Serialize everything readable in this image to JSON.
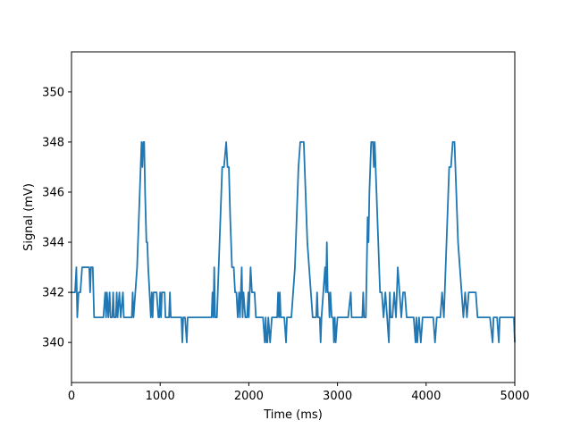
{
  "chart_data": {
    "type": "line",
    "title": "",
    "xlabel": "Time (ms)",
    "ylabel": "Signal (mV)",
    "xlim": [
      0,
      5000
    ],
    "ylim": [
      338.4,
      351.6
    ],
    "xticks": [
      0,
      1000,
      2000,
      3000,
      4000,
      5000
    ],
    "xtick_labels": [
      "0",
      "1000",
      "2000",
      "3000",
      "4000",
      "5000"
    ],
    "yticks": [
      340,
      342,
      344,
      346,
      348,
      350
    ],
    "ytick_labels": [
      "340",
      "342",
      "344",
      "346",
      "348",
      "350"
    ],
    "grid": false,
    "legend": "none",
    "color": "#1f77b4",
    "series": [
      {
        "points": [
          [
            0,
            342
          ],
          [
            40,
            342
          ],
          [
            55,
            343
          ],
          [
            65,
            341
          ],
          [
            80,
            342
          ],
          [
            100,
            342
          ],
          [
            120,
            343
          ],
          [
            200,
            343
          ],
          [
            210,
            342
          ],
          [
            220,
            343
          ],
          [
            240,
            343
          ],
          [
            255,
            341
          ],
          [
            280,
            341
          ],
          [
            300,
            341
          ],
          [
            330,
            341
          ],
          [
            360,
            341
          ],
          [
            380,
            342
          ],
          [
            390,
            341
          ],
          [
            400,
            342
          ],
          [
            415,
            341
          ],
          [
            430,
            342
          ],
          [
            440,
            341
          ],
          [
            460,
            341
          ],
          [
            470,
            342
          ],
          [
            480,
            341
          ],
          [
            500,
            341
          ],
          [
            510,
            342
          ],
          [
            520,
            341
          ],
          [
            540,
            342
          ],
          [
            555,
            341
          ],
          [
            580,
            342
          ],
          [
            590,
            341
          ],
          [
            620,
            341
          ],
          [
            650,
            341
          ],
          [
            680,
            341
          ],
          [
            690,
            342
          ],
          [
            700,
            341
          ],
          [
            720,
            342
          ],
          [
            740,
            343
          ],
          [
            760,
            345
          ],
          [
            780,
            347
          ],
          [
            790,
            348
          ],
          [
            800,
            347
          ],
          [
            810,
            348
          ],
          [
            820,
            348
          ],
          [
            830,
            346
          ],
          [
            845,
            344
          ],
          [
            855,
            344
          ],
          [
            865,
            343
          ],
          [
            880,
            342
          ],
          [
            895,
            341
          ],
          [
            905,
            342
          ],
          [
            915,
            341
          ],
          [
            925,
            342
          ],
          [
            940,
            342
          ],
          [
            960,
            342
          ],
          [
            980,
            341
          ],
          [
            990,
            341
          ],
          [
            1000,
            342
          ],
          [
            1010,
            341
          ],
          [
            1020,
            342
          ],
          [
            1050,
            342
          ],
          [
            1060,
            341
          ],
          [
            1080,
            341
          ],
          [
            1100,
            341
          ],
          [
            1110,
            342
          ],
          [
            1120,
            341
          ],
          [
            1140,
            341
          ],
          [
            1180,
            341
          ],
          [
            1200,
            341
          ],
          [
            1220,
            341
          ],
          [
            1240,
            341
          ],
          [
            1250,
            340
          ],
          [
            1260,
            341
          ],
          [
            1280,
            341
          ],
          [
            1300,
            340
          ],
          [
            1310,
            341
          ],
          [
            1330,
            341
          ],
          [
            1360,
            341
          ],
          [
            1400,
            341
          ],
          [
            1440,
            341
          ],
          [
            1480,
            341
          ],
          [
            1520,
            341
          ],
          [
            1560,
            341
          ],
          [
            1580,
            341
          ],
          [
            1590,
            342
          ],
          [
            1600,
            341
          ],
          [
            1610,
            343
          ],
          [
            1620,
            341
          ],
          [
            1640,
            341
          ],
          [
            1660,
            343
          ],
          [
            1680,
            345
          ],
          [
            1700,
            347
          ],
          [
            1720,
            347
          ],
          [
            1745,
            348
          ],
          [
            1760,
            347
          ],
          [
            1775,
            347
          ],
          [
            1790,
            345
          ],
          [
            1810,
            343
          ],
          [
            1830,
            343
          ],
          [
            1845,
            342
          ],
          [
            1860,
            342
          ],
          [
            1875,
            341
          ],
          [
            1890,
            342
          ],
          [
            1900,
            341
          ],
          [
            1910,
            342
          ],
          [
            1920,
            343
          ],
          [
            1930,
            341
          ],
          [
            1940,
            342
          ],
          [
            1960,
            341
          ],
          [
            1980,
            341
          ],
          [
            1995,
            342
          ],
          [
            2000,
            341
          ],
          [
            2010,
            342
          ],
          [
            2020,
            343
          ],
          [
            2035,
            342
          ],
          [
            2050,
            342
          ],
          [
            2065,
            342
          ],
          [
            2080,
            341
          ],
          [
            2100,
            341
          ],
          [
            2120,
            341
          ],
          [
            2140,
            341
          ],
          [
            2160,
            341
          ],
          [
            2180,
            340
          ],
          [
            2190,
            341
          ],
          [
            2200,
            340
          ],
          [
            2210,
            340
          ],
          [
            2220,
            341
          ],
          [
            2240,
            340
          ],
          [
            2260,
            341
          ],
          [
            2280,
            341
          ],
          [
            2300,
            341
          ],
          [
            2320,
            341
          ],
          [
            2330,
            342
          ],
          [
            2340,
            341
          ],
          [
            2350,
            342
          ],
          [
            2360,
            341
          ],
          [
            2400,
            341
          ],
          [
            2420,
            340
          ],
          [
            2430,
            341
          ],
          [
            2450,
            341
          ],
          [
            2480,
            341
          ],
          [
            2500,
            342
          ],
          [
            2520,
            343
          ],
          [
            2540,
            345
          ],
          [
            2560,
            347
          ],
          [
            2580,
            348
          ],
          [
            2620,
            348
          ],
          [
            2640,
            346
          ],
          [
            2660,
            344
          ],
          [
            2680,
            343
          ],
          [
            2700,
            342
          ],
          [
            2720,
            341
          ],
          [
            2740,
            341
          ],
          [
            2760,
            341
          ],
          [
            2770,
            342
          ],
          [
            2780,
            341
          ],
          [
            2800,
            341
          ],
          [
            2810,
            340
          ],
          [
            2820,
            341
          ],
          [
            2840,
            342
          ],
          [
            2860,
            343
          ],
          [
            2870,
            342
          ],
          [
            2880,
            344
          ],
          [
            2890,
            342
          ],
          [
            2900,
            342
          ],
          [
            2910,
            341
          ],
          [
            2920,
            342
          ],
          [
            2935,
            341
          ],
          [
            2950,
            341
          ],
          [
            2960,
            340
          ],
          [
            2970,
            341
          ],
          [
            2980,
            340
          ],
          [
            3000,
            341
          ],
          [
            3020,
            341
          ],
          [
            3040,
            341
          ],
          [
            3060,
            341
          ],
          [
            3080,
            341
          ],
          [
            3100,
            341
          ],
          [
            3120,
            341
          ],
          [
            3150,
            342
          ],
          [
            3160,
            341
          ],
          [
            3180,
            341
          ],
          [
            3200,
            341
          ],
          [
            3220,
            341
          ],
          [
            3250,
            341
          ],
          [
            3280,
            341
          ],
          [
            3290,
            342
          ],
          [
            3300,
            341
          ],
          [
            3320,
            341
          ],
          [
            3340,
            345
          ],
          [
            3350,
            344
          ],
          [
            3360,
            346
          ],
          [
            3380,
            348
          ],
          [
            3400,
            348
          ],
          [
            3410,
            347
          ],
          [
            3420,
            348
          ],
          [
            3440,
            346
          ],
          [
            3460,
            344
          ],
          [
            3470,
            343
          ],
          [
            3480,
            342
          ],
          [
            3500,
            342
          ],
          [
            3520,
            341
          ],
          [
            3540,
            342
          ],
          [
            3560,
            341
          ],
          [
            3580,
            340
          ],
          [
            3590,
            342
          ],
          [
            3600,
            341
          ],
          [
            3620,
            341
          ],
          [
            3640,
            342
          ],
          [
            3660,
            341
          ],
          [
            3680,
            343
          ],
          [
            3700,
            342
          ],
          [
            3720,
            341
          ],
          [
            3740,
            342
          ],
          [
            3760,
            342
          ],
          [
            3780,
            341
          ],
          [
            3800,
            341
          ],
          [
            3820,
            341
          ],
          [
            3840,
            341
          ],
          [
            3860,
            341
          ],
          [
            3880,
            340
          ],
          [
            3890,
            341
          ],
          [
            3900,
            340
          ],
          [
            3920,
            341
          ],
          [
            3940,
            340
          ],
          [
            3960,
            341
          ],
          [
            3980,
            341
          ],
          [
            4000,
            341
          ],
          [
            4020,
            341
          ],
          [
            4050,
            341
          ],
          [
            4080,
            341
          ],
          [
            4100,
            340
          ],
          [
            4120,
            341
          ],
          [
            4140,
            341
          ],
          [
            4160,
            341
          ],
          [
            4180,
            342
          ],
          [
            4200,
            341
          ],
          [
            4220,
            343
          ],
          [
            4240,
            345
          ],
          [
            4260,
            347
          ],
          [
            4280,
            347
          ],
          [
            4300,
            348
          ],
          [
            4320,
            348
          ],
          [
            4340,
            346
          ],
          [
            4360,
            344
          ],
          [
            4380,
            343
          ],
          [
            4400,
            342
          ],
          [
            4420,
            341
          ],
          [
            4440,
            342
          ],
          [
            4460,
            341
          ],
          [
            4480,
            342
          ],
          [
            4500,
            342
          ],
          [
            4520,
            342
          ],
          [
            4540,
            342
          ],
          [
            4560,
            342
          ],
          [
            4580,
            341
          ],
          [
            4600,
            341
          ],
          [
            4640,
            341
          ],
          [
            4680,
            341
          ],
          [
            4720,
            341
          ],
          [
            4750,
            340
          ],
          [
            4760,
            341
          ],
          [
            4800,
            341
          ],
          [
            4820,
            340
          ],
          [
            4830,
            341
          ],
          [
            4860,
            341
          ],
          [
            4900,
            341
          ],
          [
            4950,
            341
          ],
          [
            4980,
            341
          ],
          [
            4990,
            341
          ],
          [
            5000,
            340
          ]
        ]
      }
    ]
  }
}
